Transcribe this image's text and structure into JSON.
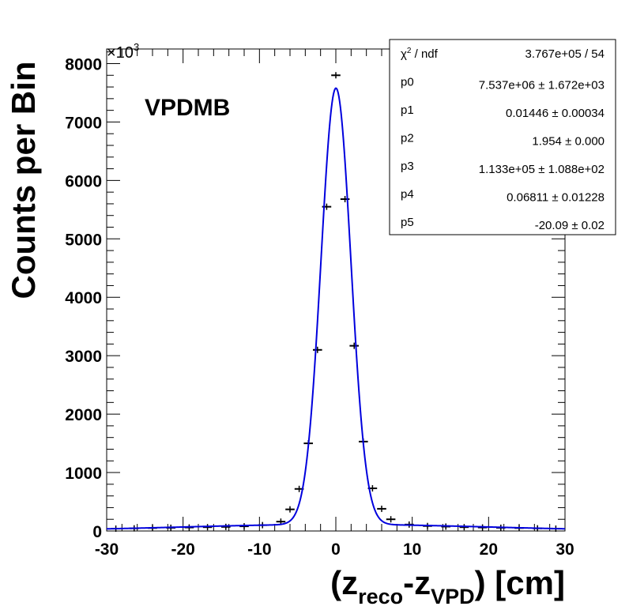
{
  "chart_data": {
    "type": "histogram-with-fit",
    "annotation": "VPDMB",
    "xlabel": {
      "open": "(z",
      "sub1": "reco",
      "dash": "-z",
      "sub2": "VPD",
      "close": ") [cm]"
    },
    "ylabel": "Counts per Bin",
    "y_multiplier_label": {
      "base": "×10",
      "exp": "3"
    },
    "xlim": [
      -30,
      30
    ],
    "ylim": [
      0,
      8250
    ],
    "x_ticks": [
      -30,
      -20,
      -10,
      0,
      10,
      20,
      30
    ],
    "x_tick_labels": [
      "-30",
      "-20",
      "-10",
      "0",
      "10",
      "20",
      "30"
    ],
    "y_ticks": [
      0,
      1000,
      2000,
      3000,
      4000,
      5000,
      6000,
      7000,
      8000
    ],
    "y_tick_labels": [
      "0",
      "1000",
      "2000",
      "3000",
      "4000",
      "5000",
      "6000",
      "7000",
      "8000"
    ],
    "hist_color": "#000000",
    "fit_color": "#0000dd",
    "histogram": {
      "bin_width": 1.2,
      "x": [
        -28.8,
        -26.4,
        -24.0,
        -21.6,
        -19.2,
        -16.8,
        -14.4,
        -12.0,
        -9.6,
        -7.2,
        -6.0,
        -4.8,
        -3.6,
        -2.4,
        -1.2,
        0.0,
        1.2,
        2.4,
        3.6,
        4.8,
        6.0,
        7.2,
        9.6,
        12.0,
        14.4,
        16.8,
        19.2,
        21.6,
        24.0,
        26.4,
        28.8
      ],
      "y": [
        40,
        45,
        50,
        55,
        60,
        65,
        70,
        80,
        100,
        160,
        370,
        720,
        1500,
        3100,
        5550,
        7800,
        5680,
        3170,
        1530,
        730,
        380,
        200,
        110,
        85,
        75,
        65,
        60,
        55,
        50,
        45,
        40
      ]
    },
    "fit": {
      "function": "gaus(p0,p1,p2) + gaus(p3,p4,p5)",
      "params": {
        "p0": 7537000,
        "p1": 0.01446,
        "p2": 1.954,
        "p3": 113300,
        "p4": 0.06811,
        "p5": -20.09
      },
      "display_scale": 0.001
    },
    "stats_box": {
      "rows": [
        {
          "label": "χ² / ndf",
          "label_main": "χ",
          "label_sup": "2",
          "label_rest": " / ndf",
          "value": "3.767e+05 / 54"
        },
        {
          "label": "p0",
          "value": "7.537e+06 ± 1.672e+03"
        },
        {
          "label": "p1",
          "value": "0.01446 ± 0.00034"
        },
        {
          "label": "p2",
          "value": "1.954 ± 0.000"
        },
        {
          "label": "p3",
          "value": "1.133e+05 ± 1.088e+02"
        },
        {
          "label": "p4",
          "value": "0.06811 ± 0.01228"
        },
        {
          "label": "p5",
          "value": "-20.09 ± 0.02"
        }
      ]
    }
  }
}
